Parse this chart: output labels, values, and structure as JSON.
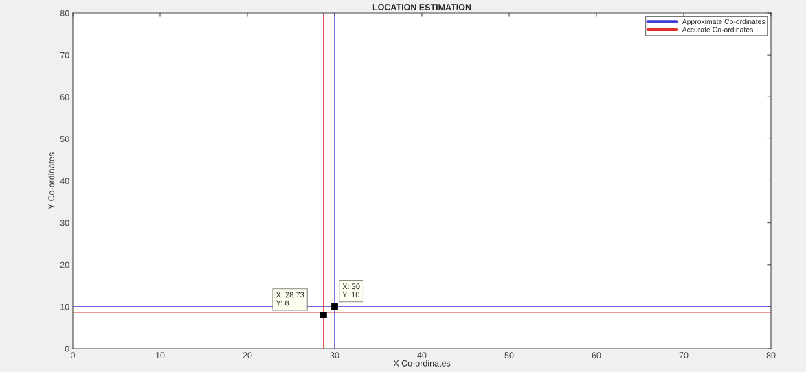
{
  "chart_data": {
    "type": "scatter",
    "title": "LOCATION ESTIMATION",
    "xlabel": "X Co-ordinates",
    "ylabel": "Y Co-ordinates",
    "xlim": [
      0,
      80
    ],
    "ylim": [
      0,
      80
    ],
    "xticks": [
      0,
      10,
      20,
      30,
      40,
      50,
      60,
      70,
      80
    ],
    "yticks": [
      0,
      10,
      20,
      30,
      40,
      50,
      60,
      70,
      80
    ],
    "grid": false,
    "legend": "top right",
    "series": [
      {
        "type": "line",
        "name": "Approximate Co-ordinates",
        "color": "#3b3bd6",
        "x": [
          30,
          30
        ],
        "values": [
          0,
          80
        ]
      },
      {
        "type": "line",
        "color": "#3b3bd6",
        "x": [
          0,
          80
        ],
        "values": [
          10,
          10
        ]
      },
      {
        "type": "line",
        "name": "Accurate Co-ordinates",
        "color": "#e0322c",
        "x": [
          28.73,
          28.73
        ],
        "values": [
          0,
          80
        ]
      },
      {
        "type": "line",
        "color": "#e0322c",
        "x": [
          0,
          80
        ],
        "values": [
          8.7,
          8.7
        ]
      }
    ],
    "annotations": [
      {
        "text": "X: 28.73\nY: 8",
        "x": 28.73,
        "y": 8
      },
      {
        "text": "X: 30\nY: 10",
        "x": 30,
        "y": 10
      }
    ]
  }
}
